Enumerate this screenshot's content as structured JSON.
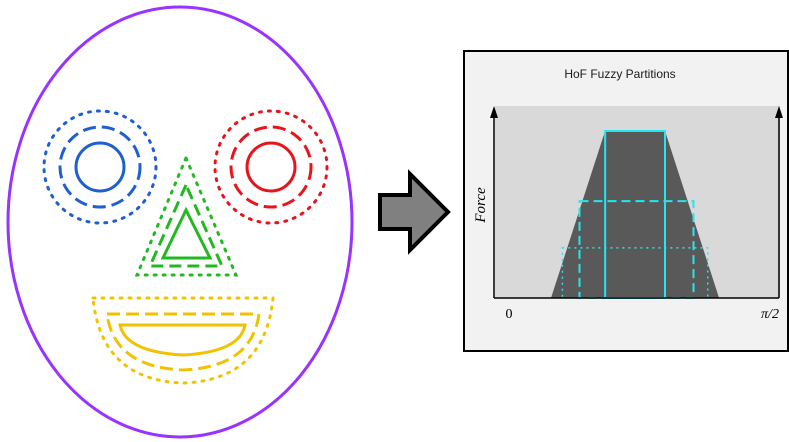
{
  "colors": {
    "face_outline": "#9933ff",
    "left_eye": "#1f5fcf",
    "right_eye": "#e8141c",
    "nose": "#22b822",
    "mouth": "#f2c200",
    "arrow_fill": "#808080",
    "panel_bg": "#f2f2f2",
    "plot_bg": "#d9d9d9",
    "trapezoid": "#595959",
    "partitions": "#22e6f0"
  },
  "face": {
    "features": [
      {
        "name": "left-eye",
        "shape": "circle",
        "color": "blue"
      },
      {
        "name": "right-eye",
        "shape": "circle",
        "color": "red"
      },
      {
        "name": "nose",
        "shape": "triangle",
        "color": "green"
      },
      {
        "name": "mouth",
        "shape": "half-ellipse",
        "color": "yellow"
      }
    ],
    "ring_styles": [
      "solid",
      "dashed",
      "dotted"
    ]
  },
  "arrow": {
    "icon": "right-arrow-icon"
  },
  "panel": {
    "title": "HoF Fuzzy Partitions",
    "y_axis_label": "Force",
    "x_tick_start": "0",
    "x_tick_end": "π/2"
  },
  "chart_data": {
    "type": "area",
    "title": "HoF Fuzzy Partitions",
    "xlabel": "",
    "ylabel": "Force",
    "xlim": [
      0,
      1
    ],
    "ylim": [
      0,
      1
    ],
    "trapezoid": {
      "x": [
        0.2,
        0.39,
        0.6,
        0.79
      ],
      "y": [
        0,
        1,
        1,
        0
      ]
    },
    "partitions": [
      {
        "style": "solid",
        "x": [
          0.39,
          0.6
        ],
        "y": 1.0
      },
      {
        "style": "dashed",
        "x": [
          0.3,
          0.7
        ],
        "y": 0.58
      },
      {
        "style": "dotted",
        "x": [
          0.24,
          0.75
        ],
        "y": 0.3
      }
    ]
  }
}
